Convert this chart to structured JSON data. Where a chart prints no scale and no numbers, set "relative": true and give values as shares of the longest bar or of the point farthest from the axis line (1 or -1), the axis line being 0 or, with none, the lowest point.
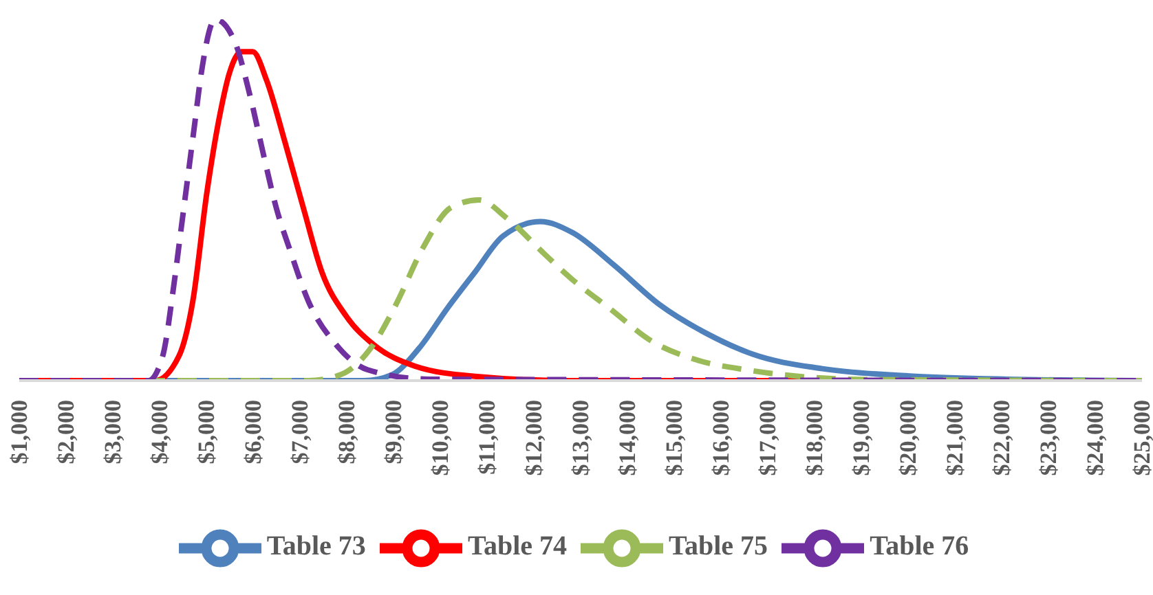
{
  "chart_data": {
    "type": "line",
    "relative": true,
    "xlim": [
      1000,
      25000
    ],
    "xticks": [
      {
        "value": 1000,
        "label": "$1,000"
      },
      {
        "value": 2000,
        "label": "$2,000"
      },
      {
        "value": 3000,
        "label": "$3,000"
      },
      {
        "value": 4000,
        "label": "$4,000"
      },
      {
        "value": 5000,
        "label": "$5,000"
      },
      {
        "value": 6000,
        "label": "$6,000"
      },
      {
        "value": 7000,
        "label": "$7,000"
      },
      {
        "value": 8000,
        "label": "$8,000"
      },
      {
        "value": 9000,
        "label": "$9,000"
      },
      {
        "value": 10000,
        "label": "$10,000"
      },
      {
        "value": 11000,
        "label": "$11,000"
      },
      {
        "value": 12000,
        "label": "$12,000"
      },
      {
        "value": 13000,
        "label": "$13,000"
      },
      {
        "value": 14000,
        "label": "$14,000"
      },
      {
        "value": 15000,
        "label": "$15,000"
      },
      {
        "value": 16000,
        "label": "$16,000"
      },
      {
        "value": 17000,
        "label": "$17,000"
      },
      {
        "value": 18000,
        "label": "$18,000"
      },
      {
        "value": 19000,
        "label": "$19,000"
      },
      {
        "value": 20000,
        "label": "$20,000"
      },
      {
        "value": 21000,
        "label": "$21,000"
      },
      {
        "value": 22000,
        "label": "$22,000"
      },
      {
        "value": 23000,
        "label": "$23,000"
      },
      {
        "value": 24000,
        "label": "$24,000"
      },
      {
        "value": 25000,
        "label": "$25,000"
      }
    ],
    "grid": false,
    "legend": "bottom",
    "marker": "none",
    "series": [
      {
        "name": "Table 73",
        "color": "#4f81bd",
        "line_style": "solid",
        "x": [
          1000,
          8370,
          8960,
          9550,
          10150,
          10740,
          11340,
          12140,
          12820,
          13710,
          14690,
          15700,
          16680,
          18170,
          20160,
          22120,
          25000
        ],
        "values": [
          0,
          0,
          0.016,
          0.09,
          0.2,
          0.3,
          0.4,
          0.44,
          0.41,
          0.32,
          0.21,
          0.13,
          0.073,
          0.033,
          0.012,
          0.004,
          0
        ]
      },
      {
        "name": "Table 74",
        "color": "#ff0000",
        "line_style": "solid",
        "x": [
          1000,
          3900,
          4420,
          4710,
          5010,
          5310,
          5490,
          5750,
          5990,
          6290,
          6680,
          7090,
          7470,
          7980,
          8570,
          9460,
          10740,
          12730,
          25000
        ],
        "values": [
          0,
          0,
          0.07,
          0.22,
          0.52,
          0.75,
          0.85,
          0.91,
          0.91,
          0.83,
          0.66,
          0.47,
          0.3,
          0.18,
          0.1,
          0.04,
          0.012,
          0,
          0
        ]
      },
      {
        "name": "Table 75",
        "color": "#9bbb59",
        "line_style": "dashed",
        "x": [
          1000,
          7180,
          7860,
          8570,
          9050,
          9640,
          10240,
          10830,
          11420,
          12230,
          12820,
          13620,
          14510,
          15490,
          16590,
          17660,
          19150,
          25000
        ],
        "values": [
          0,
          0,
          0.016,
          0.1,
          0.21,
          0.37,
          0.48,
          0.5,
          0.45,
          0.35,
          0.28,
          0.2,
          0.11,
          0.057,
          0.029,
          0.012,
          0.003,
          0
        ]
      },
      {
        "name": "Table 76",
        "color": "#7030a0",
        "line_style": "dashed",
        "x": [
          1000,
          3760,
          4060,
          4300,
          4450,
          4600,
          4740,
          4890,
          5190,
          5600,
          5930,
          6230,
          6490,
          6790,
          7180,
          7770,
          8450,
          9760,
          25000
        ],
        "values": [
          0,
          0,
          0.065,
          0.26,
          0.41,
          0.56,
          0.7,
          0.85,
          1,
          0.94,
          0.79,
          0.62,
          0.48,
          0.36,
          0.22,
          0.1,
          0.03,
          0.004,
          0
        ]
      }
    ]
  }
}
